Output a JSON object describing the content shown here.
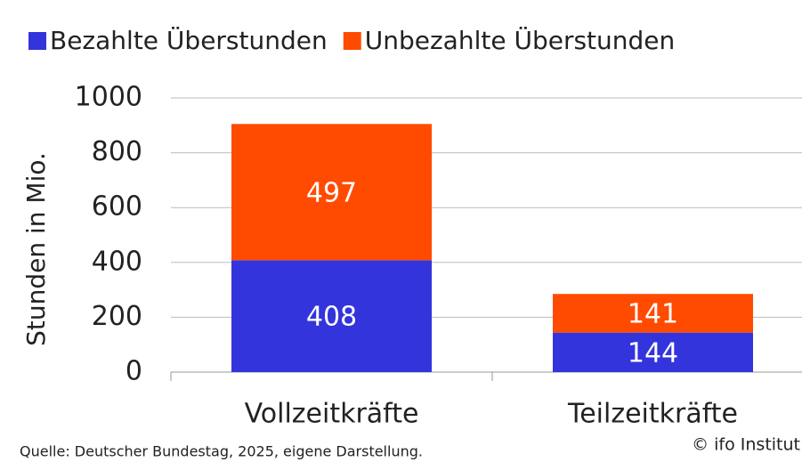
{
  "chart_data": {
    "type": "stacked_bar",
    "ylabel": "Stunden in Mio.",
    "categories": [
      "Vollzeitkräfte",
      "Teilzeitkräfte"
    ],
    "series": [
      {
        "name": "Bezahlte Überstunden",
        "color": "#3434dc",
        "values": [
          408,
          144
        ]
      },
      {
        "name": "Unbezahlte Überstunden",
        "color": "#ff4b00",
        "values": [
          497,
          141
        ]
      }
    ],
    "ylim": [
      0,
      1000
    ],
    "yticks": [
      0,
      200,
      400,
      600,
      800,
      1000
    ],
    "grid": true,
    "source": "Quelle: Deutscher Bundestag, 2025, eigene Darstellung.",
    "credit": "© ifo Institut"
  }
}
